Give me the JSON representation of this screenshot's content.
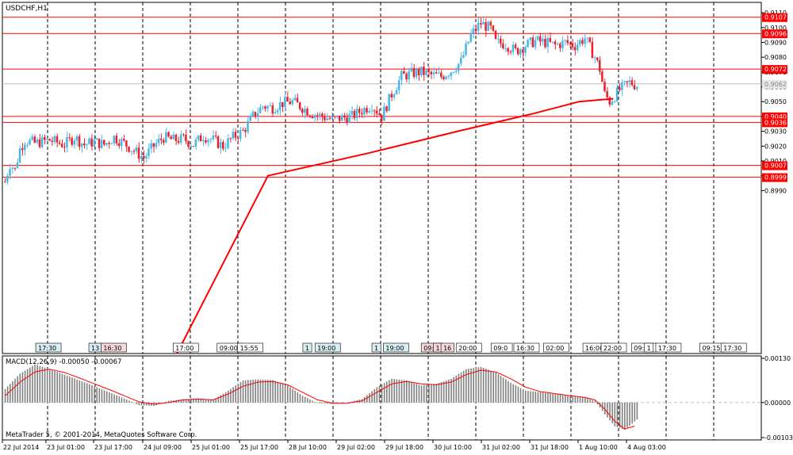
{
  "chart_data": {
    "type": "candlestick",
    "symbol_label": "USDCHF,H1",
    "copyright": "MetaTrader 5, © 2001-2014, MetaQuotes Software Corp.",
    "price_axis": {
      "ylim": [
        0.888,
        0.9117
      ],
      "ticks": [
        "0.9110",
        "0.9100",
        "0.9090",
        "0.9080",
        "0.9070",
        "0.9060",
        "0.9050",
        "0.9040",
        "0.9030",
        "0.9020",
        "0.9010",
        "0.9000",
        "0.8990"
      ],
      "tick_values": [
        0.911,
        0.91,
        0.909,
        0.908,
        0.907,
        0.906,
        0.905,
        0.904,
        0.903,
        0.902,
        0.901,
        0.9,
        0.899
      ]
    },
    "levels": [
      {
        "label": "0.9107",
        "value": 0.9107
      },
      {
        "label": "0.9096",
        "value": 0.9096
      },
      {
        "label": "0.9072",
        "value": 0.9072
      },
      {
        "label": "0.9040",
        "value": 0.904
      },
      {
        "label": "0.9036",
        "value": 0.9036
      },
      {
        "label": "0.9007",
        "value": 0.9007
      },
      {
        "label": "0.8999",
        "value": 0.8999
      }
    ],
    "current_price": {
      "label": "0.9062",
      "value": 0.9062
    },
    "time_axis": [
      "22 Jul 2014",
      "23 Jul 01:00",
      "23 Jul 17:00",
      "24 Jul 09:00",
      "25 Jul 01:00",
      "25 Jul 17:00",
      "28 Jul 10:00",
      "29 Jul 02:00",
      "29 Jul 18:00",
      "30 Jul 10:00",
      "31 Jul 02:00",
      "31 Jul 18:00",
      "1 Aug 10:00",
      "4 Aug 03:00"
    ],
    "session_labels": [
      {
        "text": "17:30",
        "at": 0.045,
        "bg": "#d8eef3"
      },
      {
        "text": "13",
        "at": 0.115,
        "bg": "#d8eef3"
      },
      {
        "text": "16:30",
        "at": 0.131,
        "bg": "#f7d9dc"
      },
      {
        "text": "17:00",
        "at": 0.226,
        "bg": "#ffffff"
      },
      {
        "text": "09:00",
        "at": 0.284,
        "bg": "#ffffff"
      },
      {
        "text": "15:55",
        "at": 0.311,
        "bg": "#ffffff"
      },
      {
        "text": "1",
        "at": 0.397,
        "bg": "#d8eef3"
      },
      {
        "text": "19:00",
        "at": 0.413,
        "bg": "#d8eef3"
      },
      {
        "text": "1",
        "at": 0.488,
        "bg": "#d8eef3"
      },
      {
        "text": "19:00",
        "at": 0.503,
        "bg": "#d8eef3"
      },
      {
        "text": "09:0",
        "at": 0.553,
        "bg": "#f7d9dc"
      },
      {
        "text": "1",
        "at": 0.569,
        "bg": "#f7d9dc"
      },
      {
        "text": "16",
        "at": 0.579,
        "bg": "#f7d9dc"
      },
      {
        "text": "20:00",
        "at": 0.599,
        "bg": "#ffffff"
      },
      {
        "text": "09:0",
        "at": 0.645,
        "bg": "#ffffff"
      },
      {
        "text": "16:30",
        "at": 0.675,
        "bg": "#ffffff"
      },
      {
        "text": "02:00",
        "at": 0.714,
        "bg": "#ffffff"
      },
      {
        "text": "16:00",
        "at": 0.766,
        "bg": "#ffffff"
      },
      {
        "text": "22:00",
        "at": 0.79,
        "bg": "#ffffff"
      },
      {
        "text": "09:30",
        "at": 0.83,
        "bg": "#ffffff"
      },
      {
        "text": "1",
        "at": 0.847,
        "bg": "#ffffff"
      },
      {
        "text": "17:30",
        "at": 0.862,
        "bg": "#ffffff"
      },
      {
        "text": "09:15",
        "at": 0.92,
        "bg": "#ffffff"
      },
      {
        "text": "17:30",
        "at": 0.948,
        "bg": "#ffffff"
      }
    ],
    "price_path": [
      [
        0,
        0.8996
      ],
      [
        2,
        0.9008
      ],
      [
        4,
        0.9004
      ],
      [
        6,
        0.9018
      ],
      [
        8,
        0.9024
      ],
      [
        12,
        0.9022
      ],
      [
        18,
        0.9024
      ],
      [
        24,
        0.9021
      ],
      [
        28,
        0.9026
      ],
      [
        32,
        0.9021
      ],
      [
        36,
        0.9023
      ],
      [
        40,
        0.9021
      ],
      [
        44,
        0.9026
      ],
      [
        48,
        0.9022
      ],
      [
        52,
        0.9017
      ],
      [
        56,
        0.9012
      ],
      [
        60,
        0.902
      ],
      [
        64,
        0.9026
      ],
      [
        68,
        0.9024
      ],
      [
        72,
        0.9025
      ],
      [
        76,
        0.9021
      ],
      [
        80,
        0.9027
      ],
      [
        84,
        0.9024
      ],
      [
        88,
        0.902
      ],
      [
        92,
        0.9026
      ],
      [
        96,
        0.903
      ],
      [
        100,
        0.904
      ],
      [
        104,
        0.9047
      ],
      [
        108,
        0.9046
      ],
      [
        112,
        0.9049
      ],
      [
        116,
        0.905
      ],
      [
        120,
        0.9046
      ],
      [
        124,
        0.9042
      ],
      [
        128,
        0.904
      ],
      [
        132,
        0.9038
      ],
      [
        136,
        0.9039
      ],
      [
        140,
        0.904
      ],
      [
        144,
        0.9044
      ],
      [
        148,
        0.9048
      ],
      [
        152,
        0.904
      ],
      [
        156,
        0.9055
      ],
      [
        160,
        0.9067
      ],
      [
        164,
        0.9069
      ],
      [
        168,
        0.907
      ],
      [
        172,
        0.9068
      ],
      [
        176,
        0.9067
      ],
      [
        180,
        0.9071
      ],
      [
        184,
        0.9077
      ],
      [
        188,
        0.9095
      ],
      [
        192,
        0.9103
      ],
      [
        196,
        0.9099
      ],
      [
        198,
        0.909
      ],
      [
        202,
        0.9089
      ],
      [
        206,
        0.9084
      ],
      [
        210,
        0.9088
      ],
      [
        214,
        0.9091
      ],
      [
        218,
        0.909
      ],
      [
        222,
        0.9088
      ],
      [
        226,
        0.909
      ],
      [
        230,
        0.9088
      ],
      [
        234,
        0.9093
      ],
      [
        238,
        0.908
      ],
      [
        240,
        0.9072
      ],
      [
        242,
        0.9055
      ],
      [
        244,
        0.905
      ],
      [
        246,
        0.9054
      ],
      [
        248,
        0.9058
      ],
      [
        252,
        0.9063
      ],
      [
        255,
        0.9061
      ]
    ],
    "ma": {
      "color": "#ff0000",
      "path": [
        [
          0.23,
          0.888
        ],
        [
          0.35,
          0.9
        ],
        [
          0.48,
          0.9015
        ],
        [
          0.6,
          0.903
        ],
        [
          0.7,
          0.9042
        ],
        [
          0.76,
          0.905
        ],
        [
          0.805,
          0.9052
        ]
      ]
    },
    "macd": {
      "label": "MACD(12,26,9) -0.00050 -0.00067",
      "ticks": [
        "0.00130",
        "0.00000",
        "-0.00103"
      ],
      "tick_values": [
        0.0013,
        0.0,
        -0.00103
      ],
      "ylim": [
        -0.0011,
        0.00137
      ],
      "hist": [
        [
          0,
          0.0004
        ],
        [
          6,
          0.00085
        ],
        [
          12,
          0.00112
        ],
        [
          18,
          0.00098
        ],
        [
          24,
          0.00082
        ],
        [
          30,
          0.00065
        ],
        [
          36,
          0.00048
        ],
        [
          42,
          0.0003
        ],
        [
          48,
          0.00012
        ],
        [
          54,
          -8e-05
        ],
        [
          60,
          -0.0001
        ],
        [
          66,
          5e-05
        ],
        [
          72,
          0.0001
        ],
        [
          78,
          0.00012
        ],
        [
          84,
          8e-05
        ],
        [
          90,
          0.00035
        ],
        [
          96,
          0.00065
        ],
        [
          102,
          0.00068
        ],
        [
          108,
          0.00066
        ],
        [
          114,
          0.0005
        ],
        [
          120,
          0.0002
        ],
        [
          126,
          -2e-05
        ],
        [
          132,
          -4e-05
        ],
        [
          138,
          0.0
        ],
        [
          144,
          0.0001
        ],
        [
          150,
          0.00045
        ],
        [
          156,
          0.0007
        ],
        [
          162,
          0.00065
        ],
        [
          168,
          0.0005
        ],
        [
          174,
          0.00055
        ],
        [
          180,
          0.0007
        ],
        [
          186,
          0.00098
        ],
        [
          192,
          0.00105
        ],
        [
          198,
          0.00088
        ],
        [
          204,
          0.00058
        ],
        [
          210,
          0.00035
        ],
        [
          216,
          0.0003
        ],
        [
          222,
          0.00025
        ],
        [
          228,
          0.00018
        ],
        [
          234,
          0.00015
        ],
        [
          238,
          5e-05
        ],
        [
          242,
          -0.00035
        ],
        [
          246,
          -0.0007
        ],
        [
          250,
          -0.0008
        ],
        [
          255,
          -0.0005
        ]
      ],
      "signal": [
        [
          0,
          0.0002
        ],
        [
          6,
          0.0006
        ],
        [
          12,
          0.0009
        ],
        [
          18,
          0.00098
        ],
        [
          24,
          0.00088
        ],
        [
          30,
          0.00072
        ],
        [
          36,
          0.00055
        ],
        [
          42,
          0.00038
        ],
        [
          48,
          0.0002
        ],
        [
          54,
          2e-05
        ],
        [
          60,
          -5e-05
        ],
        [
          66,
          0.0
        ],
        [
          72,
          8e-05
        ],
        [
          78,
          0.0001
        ],
        [
          84,
          8e-05
        ],
        [
          90,
          0.00025
        ],
        [
          96,
          0.00048
        ],
        [
          102,
          0.0006
        ],
        [
          108,
          0.00062
        ],
        [
          114,
          0.00052
        ],
        [
          120,
          0.0003
        ],
        [
          126,
          8e-05
        ],
        [
          132,
          -2e-05
        ],
        [
          138,
          -2e-05
        ],
        [
          144,
          5e-05
        ],
        [
          150,
          0.0003
        ],
        [
          156,
          0.00055
        ],
        [
          162,
          0.00062
        ],
        [
          168,
          0.00055
        ],
        [
          174,
          0.00052
        ],
        [
          180,
          0.0006
        ],
        [
          186,
          0.00082
        ],
        [
          192,
          0.00095
        ],
        [
          198,
          0.0009
        ],
        [
          204,
          0.0007
        ],
        [
          210,
          0.00045
        ],
        [
          216,
          0.00032
        ],
        [
          222,
          0.00026
        ],
        [
          228,
          0.0002
        ],
        [
          234,
          0.00015
        ],
        [
          238,
          8e-05
        ],
        [
          242,
          -0.0002
        ],
        [
          246,
          -0.00055
        ],
        [
          250,
          -0.00078
        ],
        [
          255,
          -0.00067
        ]
      ]
    }
  }
}
